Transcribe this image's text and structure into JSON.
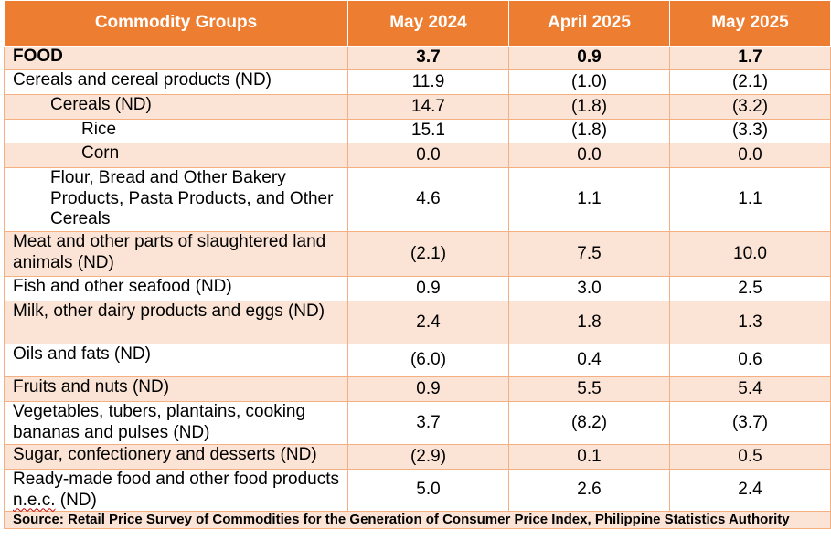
{
  "table": {
    "headers": [
      "Commodity Groups",
      "May 2024",
      "April 2025",
      "May 2025"
    ],
    "rows": [
      {
        "label": "FOOD",
        "values": [
          "3.7",
          "0.9",
          "1.7"
        ],
        "level": 0,
        "bold": true
      },
      {
        "label": "Cereals and cereal products (ND)",
        "values": [
          "11.9",
          "(1.0)",
          "(2.1)"
        ],
        "level": 0
      },
      {
        "label": "Cereals (ND)",
        "values": [
          "14.7",
          "(1.8)",
          "(3.2)"
        ],
        "level": 1
      },
      {
        "label": "Rice",
        "values": [
          "15.1",
          "(1.8)",
          "(3.3)"
        ],
        "level": 2
      },
      {
        "label": "Corn",
        "values": [
          "0.0",
          "0.0",
          "0.0"
        ],
        "level": 2
      },
      {
        "label": "Flour, Bread and Other Bakery Products, Pasta Products, and Other Cereals",
        "values": [
          "4.6",
          "1.1",
          "1.1"
        ],
        "level": 1
      },
      {
        "label": "Meat and other parts of slaughtered land animals (ND)",
        "values": [
          "(2.1)",
          "7.5",
          "10.0"
        ],
        "level": 0
      },
      {
        "label": "Fish and other seafood (ND)",
        "values": [
          "0.9",
          "3.0",
          "2.5"
        ],
        "level": 0
      },
      {
        "label": "Milk, other dairy products and eggs (ND)",
        "values": [
          "2.4",
          "1.8",
          "1.3"
        ],
        "level": 0
      },
      {
        "label": "Oils and fats (ND)",
        "values": [
          "(6.0)",
          "0.4",
          "0.6"
        ],
        "level": 0
      },
      {
        "label": "Fruits and nuts (ND)",
        "values": [
          "0.9",
          "5.5",
          "5.4"
        ],
        "level": 0
      },
      {
        "label": "Vegetables, tubers, plantains, cooking bananas and pulses (ND)",
        "values": [
          "3.7",
          "(8.2)",
          "(3.7)"
        ],
        "level": 0
      },
      {
        "label": "Sugar, confectionery and desserts (ND)",
        "values": [
          "(2.9)",
          "0.1",
          "0.5"
        ],
        "level": 0
      },
      {
        "label": "Ready-made food and other food products n.e.c. (ND)",
        "values": [
          "5.0",
          "2.6",
          "2.4"
        ],
        "level": 0
      }
    ],
    "source": "Source: Retail Price Survey of Commodities for the Generation of Consumer Price Index, Philippine Statistics Authority"
  },
  "colors": {
    "header_bg": "#ed7d31",
    "band_bg": "#fbe4d5",
    "border": "#f4b083"
  }
}
